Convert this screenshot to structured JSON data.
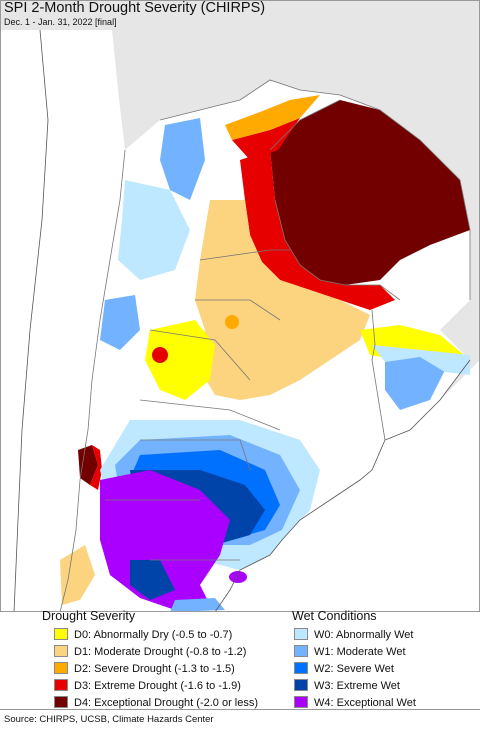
{
  "header": {
    "title": "SPI 2-Month Drought Severity (CHIRPS)",
    "subtitle": "Dec. 1 - Jan. 31, 2022 [final]"
  },
  "map": {
    "land_color": "#ffffff",
    "outside_color": "#e6e6e6",
    "water_color": "#ffffff",
    "border_color": "#777777"
  },
  "legend": {
    "drought_title": "Drought Severity",
    "wet_title": "Wet Conditions",
    "drought_items": [
      {
        "label": "D0: Abnormally Dry (-0.5 to -0.7)",
        "color": "#ffff00"
      },
      {
        "label": "D1: Moderate Drought (-0.8 to -1.2)",
        "color": "#fcd37f"
      },
      {
        "label": "D2: Severe Drought (-1.3 to -1.5)",
        "color": "#ffaa00"
      },
      {
        "label": "D3: Extreme Drought (-1.6 to -1.9)",
        "color": "#e60000"
      },
      {
        "label": "D4: Exceptional Drought (-2.0 or less)",
        "color": "#730000"
      }
    ],
    "wet_items": [
      {
        "label": "W0: Abnormally Wet",
        "color": "#bee8ff"
      },
      {
        "label": "W1: Moderate Wet",
        "color": "#73b2ff"
      },
      {
        "label": "W2: Severe Wet",
        "color": "#0070ff"
      },
      {
        "label": "W3: Extreme Wet",
        "color": "#0044aa"
      },
      {
        "label": "W4: Exceptional Wet",
        "color": "#aa00ff"
      }
    ]
  },
  "footer": {
    "source": "Source: CHIRPS, UCSB, Climate Hazards Center"
  }
}
